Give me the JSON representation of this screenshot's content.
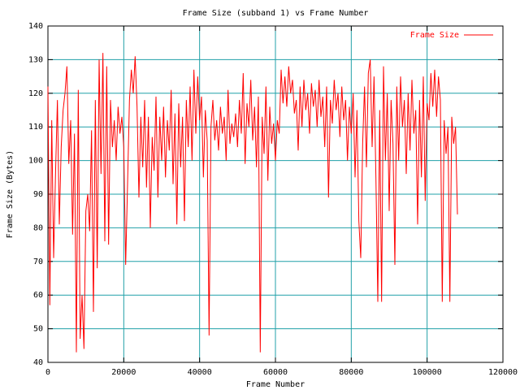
{
  "chart_data": {
    "type": "line",
    "title": "Frame Size (subband 1) vs Frame Number",
    "x_label": "Frame Number",
    "y_label": "Frame Size (Bytes)",
    "x": [
      0,
      500,
      1000,
      1500,
      2000,
      2500,
      3000,
      3500,
      4000,
      4500,
      5000,
      5500,
      6000,
      6500,
      7000,
      7500,
      8000,
      8500,
      9000,
      9500,
      10000,
      10500,
      11000,
      11500,
      12000,
      12500,
      13000,
      13500,
      14000,
      14500,
      15000,
      15500,
      16000,
      16500,
      17000,
      17500,
      18000,
      18500,
      19000,
      19500,
      20000,
      20500,
      21000,
      21500,
      22000,
      22500,
      23000,
      23500,
      24000,
      24500,
      25000,
      25500,
      26000,
      26500,
      27000,
      27500,
      28000,
      28500,
      29000,
      29500,
      30000,
      30500,
      31000,
      31500,
      32000,
      32500,
      33000,
      33500,
      34000,
      34500,
      35000,
      35500,
      36000,
      36500,
      37000,
      37500,
      38000,
      38500,
      39000,
      39500,
      40000,
      40500,
      41000,
      41500,
      42000,
      42500,
      43000,
      43500,
      44000,
      44500,
      45000,
      45500,
      46000,
      46500,
      47000,
      47500,
      48000,
      48500,
      49000,
      49500,
      50000,
      50500,
      51000,
      51500,
      52000,
      52500,
      53000,
      53500,
      54000,
      54500,
      55000,
      55500,
      56000,
      56500,
      57000,
      57500,
      58000,
      58500,
      59000,
      59500,
      60000,
      60500,
      61000,
      61500,
      62000,
      62500,
      63000,
      63500,
      64000,
      64500,
      65000,
      65500,
      66000,
      66500,
      67000,
      67500,
      68000,
      68500,
      69000,
      69500,
      70000,
      70500,
      71000,
      71500,
      72000,
      72500,
      73000,
      73500,
      74000,
      74500,
      75000,
      75500,
      76000,
      76500,
      77000,
      77500,
      78000,
      78500,
      79000,
      79500,
      80000,
      80500,
      81000,
      81500,
      82000,
      82500,
      83000,
      83500,
      84000,
      84500,
      85000,
      85500,
      86000,
      86500,
      87000,
      87500,
      88000,
      88500,
      89000,
      89500,
      90000,
      90500,
      91000,
      91500,
      92000,
      92500,
      93000,
      93500,
      94000,
      94500,
      95000,
      95500,
      96000,
      96500,
      97000,
      97500,
      98000,
      98500,
      99000,
      99500,
      100000,
      100500,
      101000,
      101500,
      102000,
      102500,
      103000,
      103500,
      104000,
      104500,
      105000,
      105500,
      106000,
      106500,
      107000,
      107500,
      108000
    ],
    "series": [
      {
        "name": "Frame Size",
        "color": "#ff0000",
        "values": [
          122,
          57,
          112,
          71,
          96,
          118,
          81,
          104,
          115,
          120,
          128,
          99,
          112,
          78,
          108,
          43,
          121,
          47,
          60,
          44,
          85,
          90,
          79,
          109,
          55,
          118,
          68,
          130,
          96,
          132,
          76,
          128,
          75,
          118,
          104,
          112,
          100,
          116,
          108,
          113,
          104,
          69,
          93,
          118,
          127,
          120,
          131,
          116,
          89,
          113,
          98,
          118,
          92,
          113,
          80,
          107,
          97,
          119,
          89,
          113,
          100,
          116,
          95,
          112,
          103,
          121,
          93,
          114,
          81,
          117,
          98,
          113,
          82,
          118,
          104,
          122,
          100,
          127,
          108,
          125,
          112,
          119,
          95,
          115,
          106,
          48,
          110,
          118,
          106,
          112,
          103,
          116,
          108,
          113,
          100,
          121,
          105,
          111,
          107,
          114,
          104,
          118,
          108,
          126,
          99,
          117,
          110,
          124,
          106,
          116,
          98,
          119,
          43,
          113,
          102,
          122,
          94,
          116,
          105,
          111,
          100,
          112,
          108,
          127,
          117,
          125,
          116,
          128,
          120,
          124,
          114,
          118,
          103,
          122,
          110,
          124,
          115,
          120,
          108,
          123,
          116,
          121,
          110,
          124,
          113,
          119,
          104,
          122,
          89,
          118,
          111,
          124,
          115,
          120,
          107,
          122,
          112,
          118,
          100,
          116,
          108,
          120,
          95,
          115,
          82,
          71,
          105,
          122,
          98,
          126,
          130,
          104,
          125,
          95,
          58,
          115,
          58,
          128,
          100,
          120,
          85,
          118,
          105,
          69,
          122,
          100,
          125,
          110,
          118,
          96,
          120,
          103,
          124,
          108,
          115,
          81,
          118,
          95,
          125,
          88,
          117,
          112,
          126,
          116,
          127,
          113,
          125,
          118,
          58,
          112,
          102,
          110,
          58,
          113,
          105,
          110,
          84
        ]
      }
    ],
    "xlim": [
      0,
      120000
    ],
    "xticks": [
      0,
      20000,
      40000,
      60000,
      80000,
      100000,
      120000
    ],
    "ylim": [
      40,
      140
    ],
    "yticks": [
      40,
      50,
      60,
      70,
      80,
      90,
      100,
      110,
      120,
      130,
      140
    ],
    "grid": true,
    "legend": "top-right"
  }
}
